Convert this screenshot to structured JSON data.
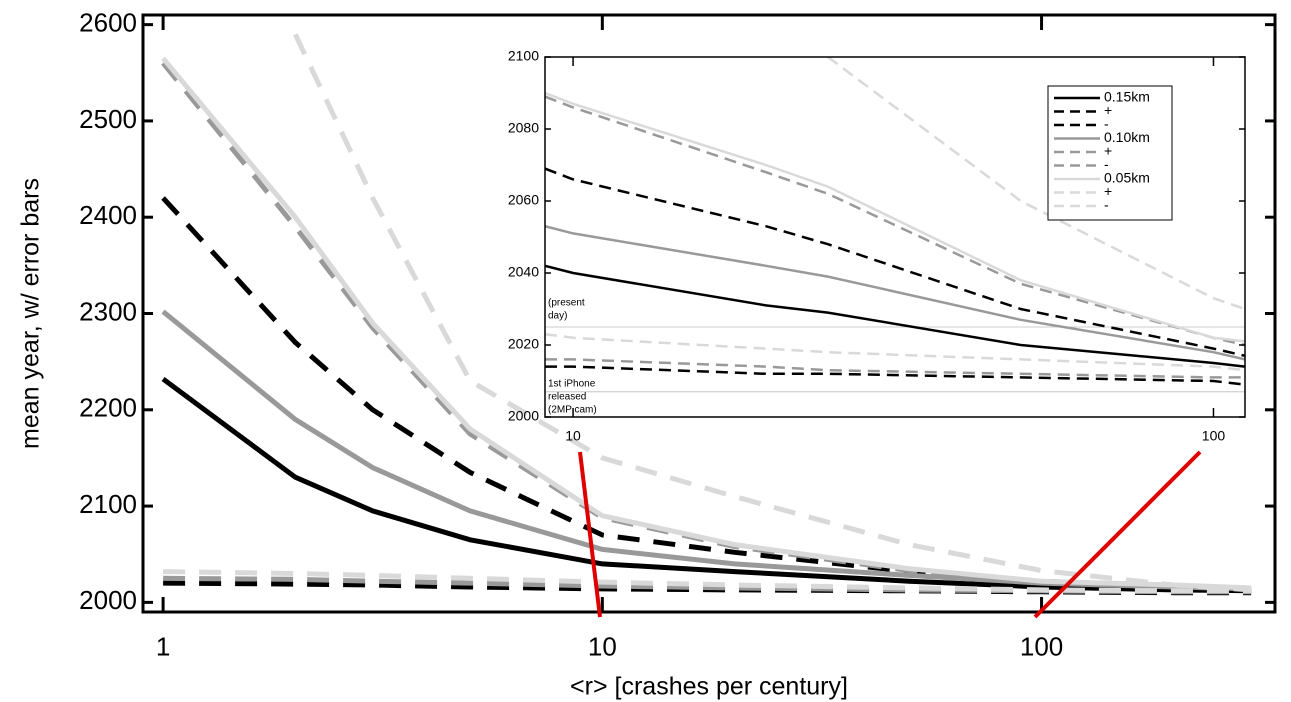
{
  "chart_data": [
    {
      "type": "line",
      "xlabel": "<r> [crashes per century]",
      "ylabel": "mean year, w/ error bars",
      "xscale": "log",
      "xlim": [
        0.9,
        340
      ],
      "ylim": [
        1990,
        2610
      ],
      "xticks": [
        1,
        10,
        100
      ],
      "yticks": [
        2000,
        2100,
        2200,
        2300,
        2400,
        2500,
        2600
      ],
      "x": [
        1,
        2,
        3,
        5,
        10,
        20,
        50,
        100,
        200,
        300
      ],
      "series": [
        {
          "color": "#000000",
          "dashed": false,
          "values": [
            2232,
            2130,
            2095,
            2065,
            2040,
            2032,
            2022,
            2016,
            2013,
            2012
          ]
        },
        {
          "color": "#000000",
          "dashed": true,
          "values": [
            2420,
            2270,
            2200,
            2135,
            2070,
            2052,
            2032,
            2022,
            2016,
            2014
          ]
        },
        {
          "color": "#000000",
          "dashed": true,
          "values": [
            2020,
            2019,
            2018,
            2016,
            2014,
            2013,
            2012,
            2011,
            2010,
            2010
          ]
        },
        {
          "color": "#999999",
          "dashed": false,
          "values": [
            2302,
            2190,
            2140,
            2095,
            2055,
            2040,
            2028,
            2020,
            2016,
            2014
          ]
        },
        {
          "color": "#999999",
          "dashed": true,
          "values": [
            2560,
            2390,
            2285,
            2175,
            2088,
            2058,
            2033,
            2021,
            2017,
            2014
          ]
        },
        {
          "color": "#999999",
          "dashed": true,
          "values": [
            2025,
            2024,
            2022,
            2020,
            2017,
            2015,
            2013,
            2012,
            2011,
            2011
          ]
        },
        {
          "color": "#d9d9d9",
          "dashed": false,
          "values": [
            2565,
            2400,
            2290,
            2180,
            2090,
            2060,
            2035,
            2022,
            2018,
            2015
          ]
        },
        {
          "color": "#d9d9d9",
          "dashed": true,
          "values": [
            null,
            2590,
            2420,
            2230,
            2150,
            2110,
            2060,
            2033,
            2018,
            2013
          ]
        },
        {
          "color": "#d9d9d9",
          "dashed": true,
          "values": [
            2032,
            2030,
            2028,
            2025,
            2021,
            2018,
            2015,
            2013,
            2012,
            2012
          ]
        }
      ]
    },
    {
      "type": "line",
      "xscale": "log",
      "xlim": [
        9.04,
        112
      ],
      "ylim": [
        2000,
        2100
      ],
      "xticks": [
        10,
        100
      ],
      "yticks": [
        2000,
        2020,
        2040,
        2060,
        2080,
        2100
      ],
      "x": [
        9.04,
        10,
        20,
        25,
        50,
        100,
        112
      ],
      "reference_lines": [
        {
          "y": 2025,
          "lines": [
            "(present",
            "day)"
          ]
        },
        {
          "y": 2007,
          "lines": [
            "1st iPhone",
            "released",
            "(2MP cam)"
          ]
        }
      ],
      "series": [
        {
          "name": "0.15km",
          "color": "#000000",
          "dashed": false,
          "values": [
            2042,
            2040,
            2031,
            2029,
            2020,
            2015,
            2014
          ]
        },
        {
          "name": "+",
          "color": "#000000",
          "dashed": true,
          "values": [
            2069,
            2066,
            2053,
            2048,
            2030,
            2019,
            2017
          ]
        },
        {
          "name": "-",
          "color": "#000000",
          "dashed": true,
          "values": [
            2014,
            2014,
            2012,
            2012,
            2011,
            2010,
            2009
          ]
        },
        {
          "name": "0.10km",
          "color": "#999999",
          "dashed": false,
          "values": [
            2053,
            2051,
            2042,
            2039,
            2027,
            2018,
            2016
          ]
        },
        {
          "name": "+",
          "color": "#999999",
          "dashed": true,
          "values": [
            2089,
            2086,
            2068,
            2062,
            2037,
            2022,
            2020
          ]
        },
        {
          "name": "-",
          "color": "#999999",
          "dashed": true,
          "values": [
            2016,
            2016,
            2014,
            2013,
            2012,
            2011,
            2011
          ]
        },
        {
          "name": "0.05km",
          "color": "#d9d9d9",
          "dashed": false,
          "values": [
            2090,
            2087,
            2070,
            2064,
            2038,
            2022,
            2021
          ]
        },
        {
          "name": "+",
          "color": "#d9d9d9",
          "dashed": true,
          "values": [
            null,
            null,
            null,
            2100,
            2060,
            2033,
            2030
          ]
        },
        {
          "name": "-",
          "color": "#d9d9d9",
          "dashed": true,
          "values": [
            2023,
            2022,
            2019,
            2018,
            2016,
            2014,
            2013
          ]
        }
      ]
    }
  ]
}
